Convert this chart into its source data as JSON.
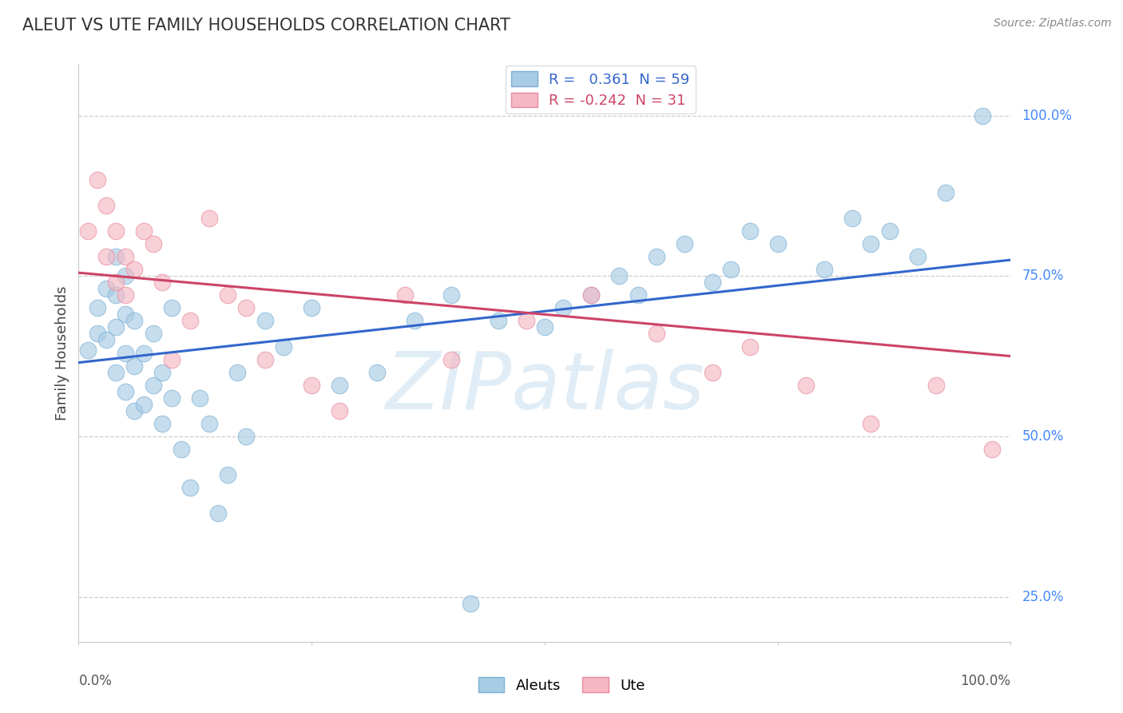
{
  "title": "ALEUT VS UTE FAMILY HOUSEHOLDS CORRELATION CHART",
  "ylabel": "Family Households",
  "right_ytick_positions": [
    0.25,
    0.5,
    0.75,
    1.0
  ],
  "right_yticklabels": [
    "25.0%",
    "50.0%",
    "75.0%",
    "100.0%"
  ],
  "source_text": "Source: ZipAtlas.com",
  "watermark": "ZIPatlas",
  "legend_entry1": "R =   0.361  N = 59",
  "legend_entry2": "R = -0.242  N = 31",
  "aleuts_color": "#a8cce4",
  "ute_color": "#f5b8c4",
  "aleuts_edge_color": "#7bafd4",
  "ute_edge_color": "#e8889a",
  "aleuts_line_color": "#3366cc",
  "ute_line_color": "#cc4466",
  "background_color": "#ffffff",
  "grid_color": "#c8c8c8",
  "title_color": "#333333",
  "source_color": "#888888",
  "right_label_color": "#4488ff",
  "xlim": [
    0.0,
    1.0
  ],
  "ylim": [
    0.18,
    1.08
  ],
  "aleuts_line_start_y": 0.615,
  "aleuts_line_end_y": 0.775,
  "ute_line_start_y": 0.755,
  "ute_line_end_y": 0.625,
  "aleuts_x": [
    0.01,
    0.02,
    0.02,
    0.03,
    0.03,
    0.04,
    0.04,
    0.04,
    0.04,
    0.05,
    0.05,
    0.05,
    0.05,
    0.06,
    0.06,
    0.06,
    0.07,
    0.07,
    0.08,
    0.08,
    0.09,
    0.09,
    0.1,
    0.1,
    0.11,
    0.12,
    0.13,
    0.14,
    0.15,
    0.16,
    0.17,
    0.18,
    0.2,
    0.22,
    0.25,
    0.28,
    0.32,
    0.36,
    0.4,
    0.42,
    0.45,
    0.5,
    0.52,
    0.55,
    0.58,
    0.6,
    0.62,
    0.65,
    0.68,
    0.7,
    0.72,
    0.75,
    0.8,
    0.83,
    0.85,
    0.87,
    0.9,
    0.93,
    0.97
  ],
  "aleuts_y": [
    0.635,
    0.66,
    0.7,
    0.65,
    0.73,
    0.6,
    0.67,
    0.72,
    0.78,
    0.57,
    0.63,
    0.69,
    0.75,
    0.54,
    0.61,
    0.68,
    0.55,
    0.63,
    0.58,
    0.66,
    0.52,
    0.6,
    0.56,
    0.7,
    0.48,
    0.42,
    0.56,
    0.52,
    0.38,
    0.44,
    0.6,
    0.5,
    0.68,
    0.64,
    0.7,
    0.58,
    0.6,
    0.68,
    0.72,
    0.24,
    0.68,
    0.67,
    0.7,
    0.72,
    0.75,
    0.72,
    0.78,
    0.8,
    0.74,
    0.76,
    0.82,
    0.8,
    0.76,
    0.84,
    0.8,
    0.82,
    0.78,
    0.88,
    1.0
  ],
  "ute_x": [
    0.01,
    0.02,
    0.03,
    0.03,
    0.04,
    0.04,
    0.05,
    0.05,
    0.06,
    0.07,
    0.08,
    0.09,
    0.1,
    0.12,
    0.14,
    0.16,
    0.18,
    0.2,
    0.25,
    0.28,
    0.35,
    0.4,
    0.48,
    0.55,
    0.62,
    0.68,
    0.72,
    0.78,
    0.85,
    0.92,
    0.98
  ],
  "ute_y": [
    0.82,
    0.9,
    0.78,
    0.86,
    0.74,
    0.82,
    0.72,
    0.78,
    0.76,
    0.82,
    0.8,
    0.74,
    0.62,
    0.68,
    0.84,
    0.72,
    0.7,
    0.62,
    0.58,
    0.54,
    0.72,
    0.62,
    0.68,
    0.72,
    0.66,
    0.6,
    0.64,
    0.58,
    0.52,
    0.58,
    0.48
  ]
}
